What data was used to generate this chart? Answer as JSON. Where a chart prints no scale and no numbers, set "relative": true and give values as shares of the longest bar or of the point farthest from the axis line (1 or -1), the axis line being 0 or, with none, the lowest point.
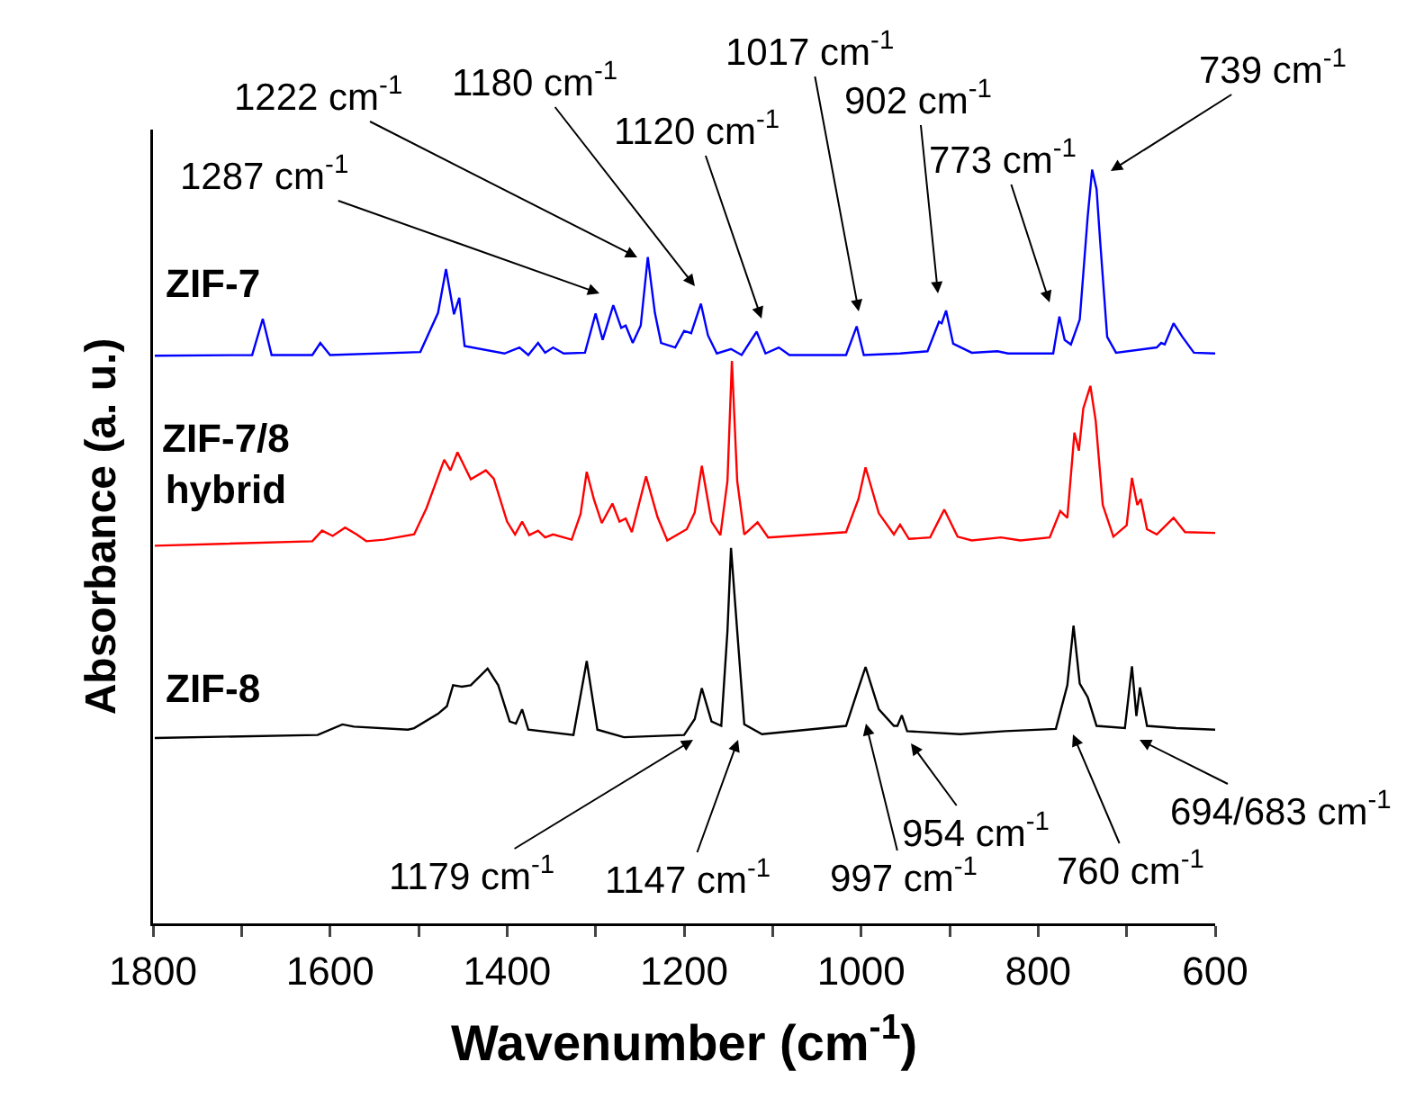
{
  "chart_data": {
    "type": "line",
    "relative": true,
    "xlabel": "Wavenumber (cm$^{-1}$)",
    "ylabel": "Absorbance (a. u.)",
    "xlim": [
      1800,
      600
    ],
    "xticks": [
      1800,
      {
        "value": 1700,
        "label": null
      },
      1600,
      {
        "value": 1500,
        "label": null
      },
      1400,
      {
        "value": 1300,
        "label": null
      },
      1200,
      {
        "value": 1100,
        "label": null
      },
      1000,
      {
        "value": 900,
        "label": null
      },
      800,
      {
        "value": 700,
        "label": null
      },
      600
    ],
    "grid": false,
    "legend": false,
    "series": [
      {
        "name": "ZIF-7",
        "color": "#0000ff",
        "x": [
          1798,
          1688,
          1676,
          1666,
          1620,
          1611,
          1600,
          1498,
          1478,
          1469,
          1460,
          1454,
          1448,
          1403,
          1386,
          1376,
          1365,
          1357,
          1348,
          1336,
          1312,
          1300,
          1292,
          1280,
          1271,
          1266,
          1258,
          1249,
          1241,
          1233,
          1226,
          1210,
          1200,
          1192,
          1181,
          1173,
          1163,
          1147,
          1135,
          1118,
          1108,
          1093,
          1081,
          1017,
          1005,
          997,
          956,
          925,
          912,
          909,
          904,
          896,
          875,
          846,
          834,
          783,
          776,
          770,
          763,
          753,
          744,
          739,
          734,
          730,
          722,
          712,
          666,
          661,
          657,
          647,
          637,
          624,
          600
        ],
        "values": [
          0.753,
          0.754,
          0.802,
          0.754,
          0.754,
          0.77,
          0.754,
          0.758,
          0.81,
          0.868,
          0.808,
          0.83,
          0.766,
          0.756,
          0.764,
          0.754,
          0.77,
          0.757,
          0.764,
          0.756,
          0.757,
          0.809,
          0.774,
          0.82,
          0.79,
          0.793,
          0.77,
          0.793,
          0.884,
          0.81,
          0.77,
          0.764,
          0.786,
          0.783,
          0.822,
          0.78,
          0.756,
          0.762,
          0.754,
          0.785,
          0.756,
          0.764,
          0.754,
          0.754,
          0.792,
          0.754,
          0.756,
          0.759,
          0.798,
          0.796,
          0.813,
          0.769,
          0.757,
          0.759,
          0.756,
          0.756,
          0.805,
          0.774,
          0.768,
          0.801,
          0.938,
          1.0,
          0.974,
          0.906,
          0.778,
          0.757,
          0.764,
          0.77,
          0.768,
          0.796,
          0.778,
          0.757,
          0.756
        ]
      },
      {
        "name": "ZIF-7/8 hybrid",
        "color": "#ff0000",
        "x": [
          1798,
          1620,
          1609,
          1597,
          1583,
          1570,
          1559,
          1539,
          1505,
          1491,
          1471,
          1464,
          1456,
          1441,
          1424,
          1415,
          1400,
          1391,
          1383,
          1375,
          1365,
          1357,
          1348,
          1327,
          1317,
          1310,
          1302,
          1293,
          1281,
          1273,
          1266,
          1259,
          1243,
          1230,
          1219,
          1197,
          1188,
          1180,
          1169,
          1159,
          1151,
          1146,
          1140,
          1132,
          1117,
          1105,
          1017,
          1003,
          995,
          980,
          963,
          956,
          946,
          922,
          906,
          891,
          875,
          842,
          820,
          787,
          775,
          767,
          759,
          754,
          749,
          741,
          735,
          727,
          715,
          700,
          694,
          688,
          684,
          677,
          666,
          647,
          634,
          600
        ],
        "values": [
          0.501,
          0.507,
          0.521,
          0.514,
          0.525,
          0.516,
          0.507,
          0.509,
          0.516,
          0.551,
          0.615,
          0.601,
          0.625,
          0.589,
          0.601,
          0.59,
          0.533,
          0.516,
          0.533,
          0.515,
          0.521,
          0.512,
          0.516,
          0.509,
          0.543,
          0.599,
          0.563,
          0.531,
          0.557,
          0.533,
          0.537,
          0.519,
          0.593,
          0.539,
          0.508,
          0.523,
          0.545,
          0.607,
          0.533,
          0.515,
          0.587,
          0.746,
          0.587,
          0.516,
          0.532,
          0.512,
          0.519,
          0.563,
          0.605,
          0.544,
          0.516,
          0.529,
          0.51,
          0.512,
          0.549,
          0.513,
          0.508,
          0.512,
          0.508,
          0.512,
          0.547,
          0.538,
          0.651,
          0.627,
          0.683,
          0.713,
          0.667,
          0.555,
          0.513,
          0.528,
          0.591,
          0.555,
          0.563,
          0.523,
          0.516,
          0.538,
          0.519,
          0.518
        ]
      },
      {
        "name": "ZIF-8",
        "color": "#000000",
        "x": [
          1798,
          1614,
          1586,
          1573,
          1512,
          1505,
          1478,
          1468,
          1461,
          1451,
          1441,
          1422,
          1410,
          1397,
          1390,
          1383,
          1376,
          1325,
          1310,
          1298,
          1268,
          1200,
          1188,
          1180,
          1169,
          1158,
          1151,
          1147,
          1140,
          1132,
          1112,
          1017,
          1003,
          995,
          980,
          963,
          959,
          954,
          948,
          888,
          837,
          780,
          767,
          760,
          753,
          744,
          734,
          702,
          694,
          689,
          685,
          677,
          644,
          600
        ],
        "values": [
          0.246,
          0.25,
          0.264,
          0.261,
          0.257,
          0.259,
          0.278,
          0.288,
          0.316,
          0.314,
          0.316,
          0.338,
          0.316,
          0.268,
          0.265,
          0.284,
          0.257,
          0.25,
          0.348,
          0.257,
          0.247,
          0.25,
          0.271,
          0.312,
          0.268,
          0.262,
          0.388,
          0.498,
          0.388,
          0.264,
          0.251,
          0.262,
          0.312,
          0.34,
          0.284,
          0.262,
          0.262,
          0.276,
          0.255,
          0.251,
          0.255,
          0.258,
          0.316,
          0.395,
          0.318,
          0.3,
          0.262,
          0.259,
          0.341,
          0.275,
          0.313,
          0.262,
          0.259,
          0.257
        ]
      }
    ],
    "annotations": [
      "1287 cm$^{-1}$",
      "1222 cm$^{-1}$",
      "1180 cm$^{-1}$",
      "1120 cm$^{-1}$",
      "1017 cm$^{-1}$",
      "902 cm$^{-1}$",
      "773 cm$^{-1}$",
      "739 cm$^{-1}$",
      "1179 cm$^{-1}$",
      "1147 cm$^{-1}$",
      "997 cm$^{-1}$",
      "954 cm$^{-1}$",
      "760 cm$^{-1}$",
      "694/683 cm$^{-1}$"
    ]
  }
}
